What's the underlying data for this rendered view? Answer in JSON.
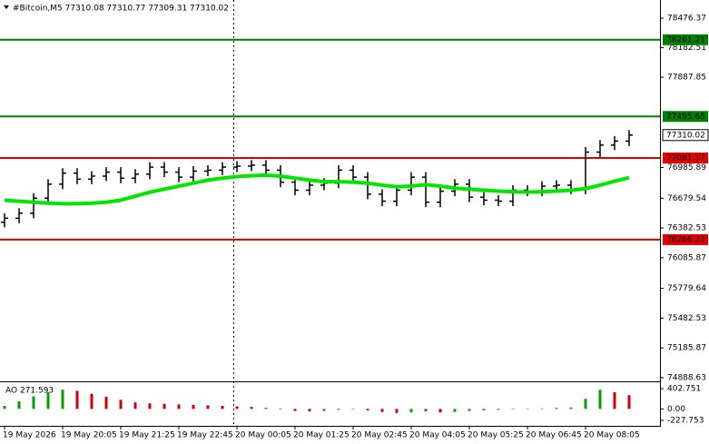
{
  "chart_data": [
    {
      "type": "ohlc",
      "title": "#Bitcoin,M5  77310.08 77310.77 77309.31 77310.02",
      "categories": [
        "19 May 2026",
        null,
        null,
        null,
        "19 May 20:05",
        null,
        null,
        null,
        "19 May 21:25",
        null,
        null,
        null,
        "19 May 22:45",
        null,
        null,
        null,
        "20 May 00:05",
        null,
        null,
        null,
        "20 May 01:25",
        null,
        null,
        null,
        "20 May 02:45",
        null,
        null,
        null,
        "20 May 04:05",
        null,
        null,
        null,
        "20 May 05:25",
        null,
        null,
        null,
        "20 May 06:45",
        null,
        null,
        null,
        "20 May 08:05",
        null,
        null,
        null
      ],
      "open": [
        76440,
        76480,
        76530,
        76680,
        76820,
        76930,
        76870,
        76900,
        76940,
        76880,
        76920,
        76990,
        76940,
        76890,
        76950,
        76960,
        76990,
        77000,
        77010,
        76960,
        76840,
        76760,
        76810,
        76830,
        76960,
        76890,
        76720,
        76650,
        76760,
        76890,
        76640,
        76750,
        76820,
        76690,
        76660,
        76650,
        76760,
        76750,
        76800,
        76810,
        76770,
        77140,
        77210,
        77250
      ],
      "high": [
        76530,
        76580,
        76730,
        76870,
        76980,
        76980,
        76950,
        76990,
        76990,
        76970,
        77040,
        77040,
        76990,
        77000,
        77010,
        77040,
        77050,
        77060,
        77060,
        77010,
        76890,
        76860,
        76880,
        77010,
        77010,
        76940,
        76770,
        76810,
        76940,
        76940,
        76800,
        76870,
        76870,
        76740,
        76710,
        76810,
        76810,
        76850,
        76860,
        76860,
        77190,
        77260,
        77300,
        77360
      ],
      "low": [
        76390,
        76430,
        76480,
        76630,
        76770,
        76820,
        76820,
        76850,
        76830,
        76830,
        76870,
        76890,
        76840,
        76840,
        76900,
        76910,
        76940,
        76950,
        76910,
        76790,
        76710,
        76710,
        76760,
        76780,
        76840,
        76670,
        76600,
        76600,
        76710,
        76590,
        76590,
        76700,
        76640,
        76610,
        76600,
        76600,
        76700,
        76700,
        76750,
        76720,
        76720,
        77090,
        77160,
        77200
      ],
      "close": [
        76480,
        76530,
        76680,
        76820,
        76930,
        76870,
        76900,
        76940,
        76880,
        76920,
        76990,
        76940,
        76890,
        76950,
        76960,
        76990,
        77000,
        77010,
        76960,
        76840,
        76760,
        76810,
        76830,
        76960,
        76890,
        76720,
        76650,
        76760,
        76890,
        76640,
        76750,
        76820,
        76690,
        76660,
        76650,
        76760,
        76750,
        76800,
        76810,
        76770,
        77140,
        77210,
        77250,
        77310.02
      ],
      "color": "#000000",
      "ma": {
        "color": "#00e600",
        "values": [
          76660,
          76650,
          76640,
          76630,
          76625,
          76625,
          76630,
          76640,
          76660,
          76700,
          76740,
          76770,
          76800,
          76830,
          76860,
          76880,
          76895,
          76905,
          76910,
          76900,
          76880,
          76860,
          76845,
          76845,
          76840,
          76830,
          76810,
          76795,
          76800,
          76815,
          76800,
          76780,
          76770,
          76760,
          76750,
          76745,
          76740,
          76745,
          76750,
          76760,
          76775,
          76810,
          76850,
          76885
        ]
      },
      "levels": [
        {
          "value": 78261.21,
          "color": "#008000"
        },
        {
          "value": 77495.65,
          "color": "#008000"
        },
        {
          "value": 77081.17,
          "color": "#e00000"
        },
        {
          "value": 76266.27,
          "color": "#e00000"
        }
      ],
      "current": 77310.02,
      "ylim": [
        74852,
        78658
      ],
      "yticks": [
        78476.37,
        78182.51,
        77887.85,
        76985.89,
        76679.54,
        76382.53,
        76085.87,
        75779.64,
        75482.53,
        75185.87,
        74888.63
      ]
    },
    {
      "type": "bar",
      "title": "AO 271.593",
      "values": [
        60,
        150,
        250,
        330,
        380,
        360,
        300,
        240,
        180,
        130,
        110,
        100,
        90,
        80,
        70,
        60,
        50,
        40,
        20,
        -10,
        -40,
        -50,
        -40,
        -20,
        -10,
        -30,
        -60,
        -80,
        -70,
        -50,
        -70,
        -60,
        -40,
        -30,
        -20,
        -10,
        0,
        10,
        20,
        30,
        200,
        380,
        330,
        271.593
      ],
      "up_color": "#00a000",
      "down_color": "#d00000",
      "ylim": [
        -318,
        511
      ],
      "yticks": [
        402.751,
        {
          "value": 0,
          "label": "0.00"
        },
        -227.753
      ]
    }
  ]
}
